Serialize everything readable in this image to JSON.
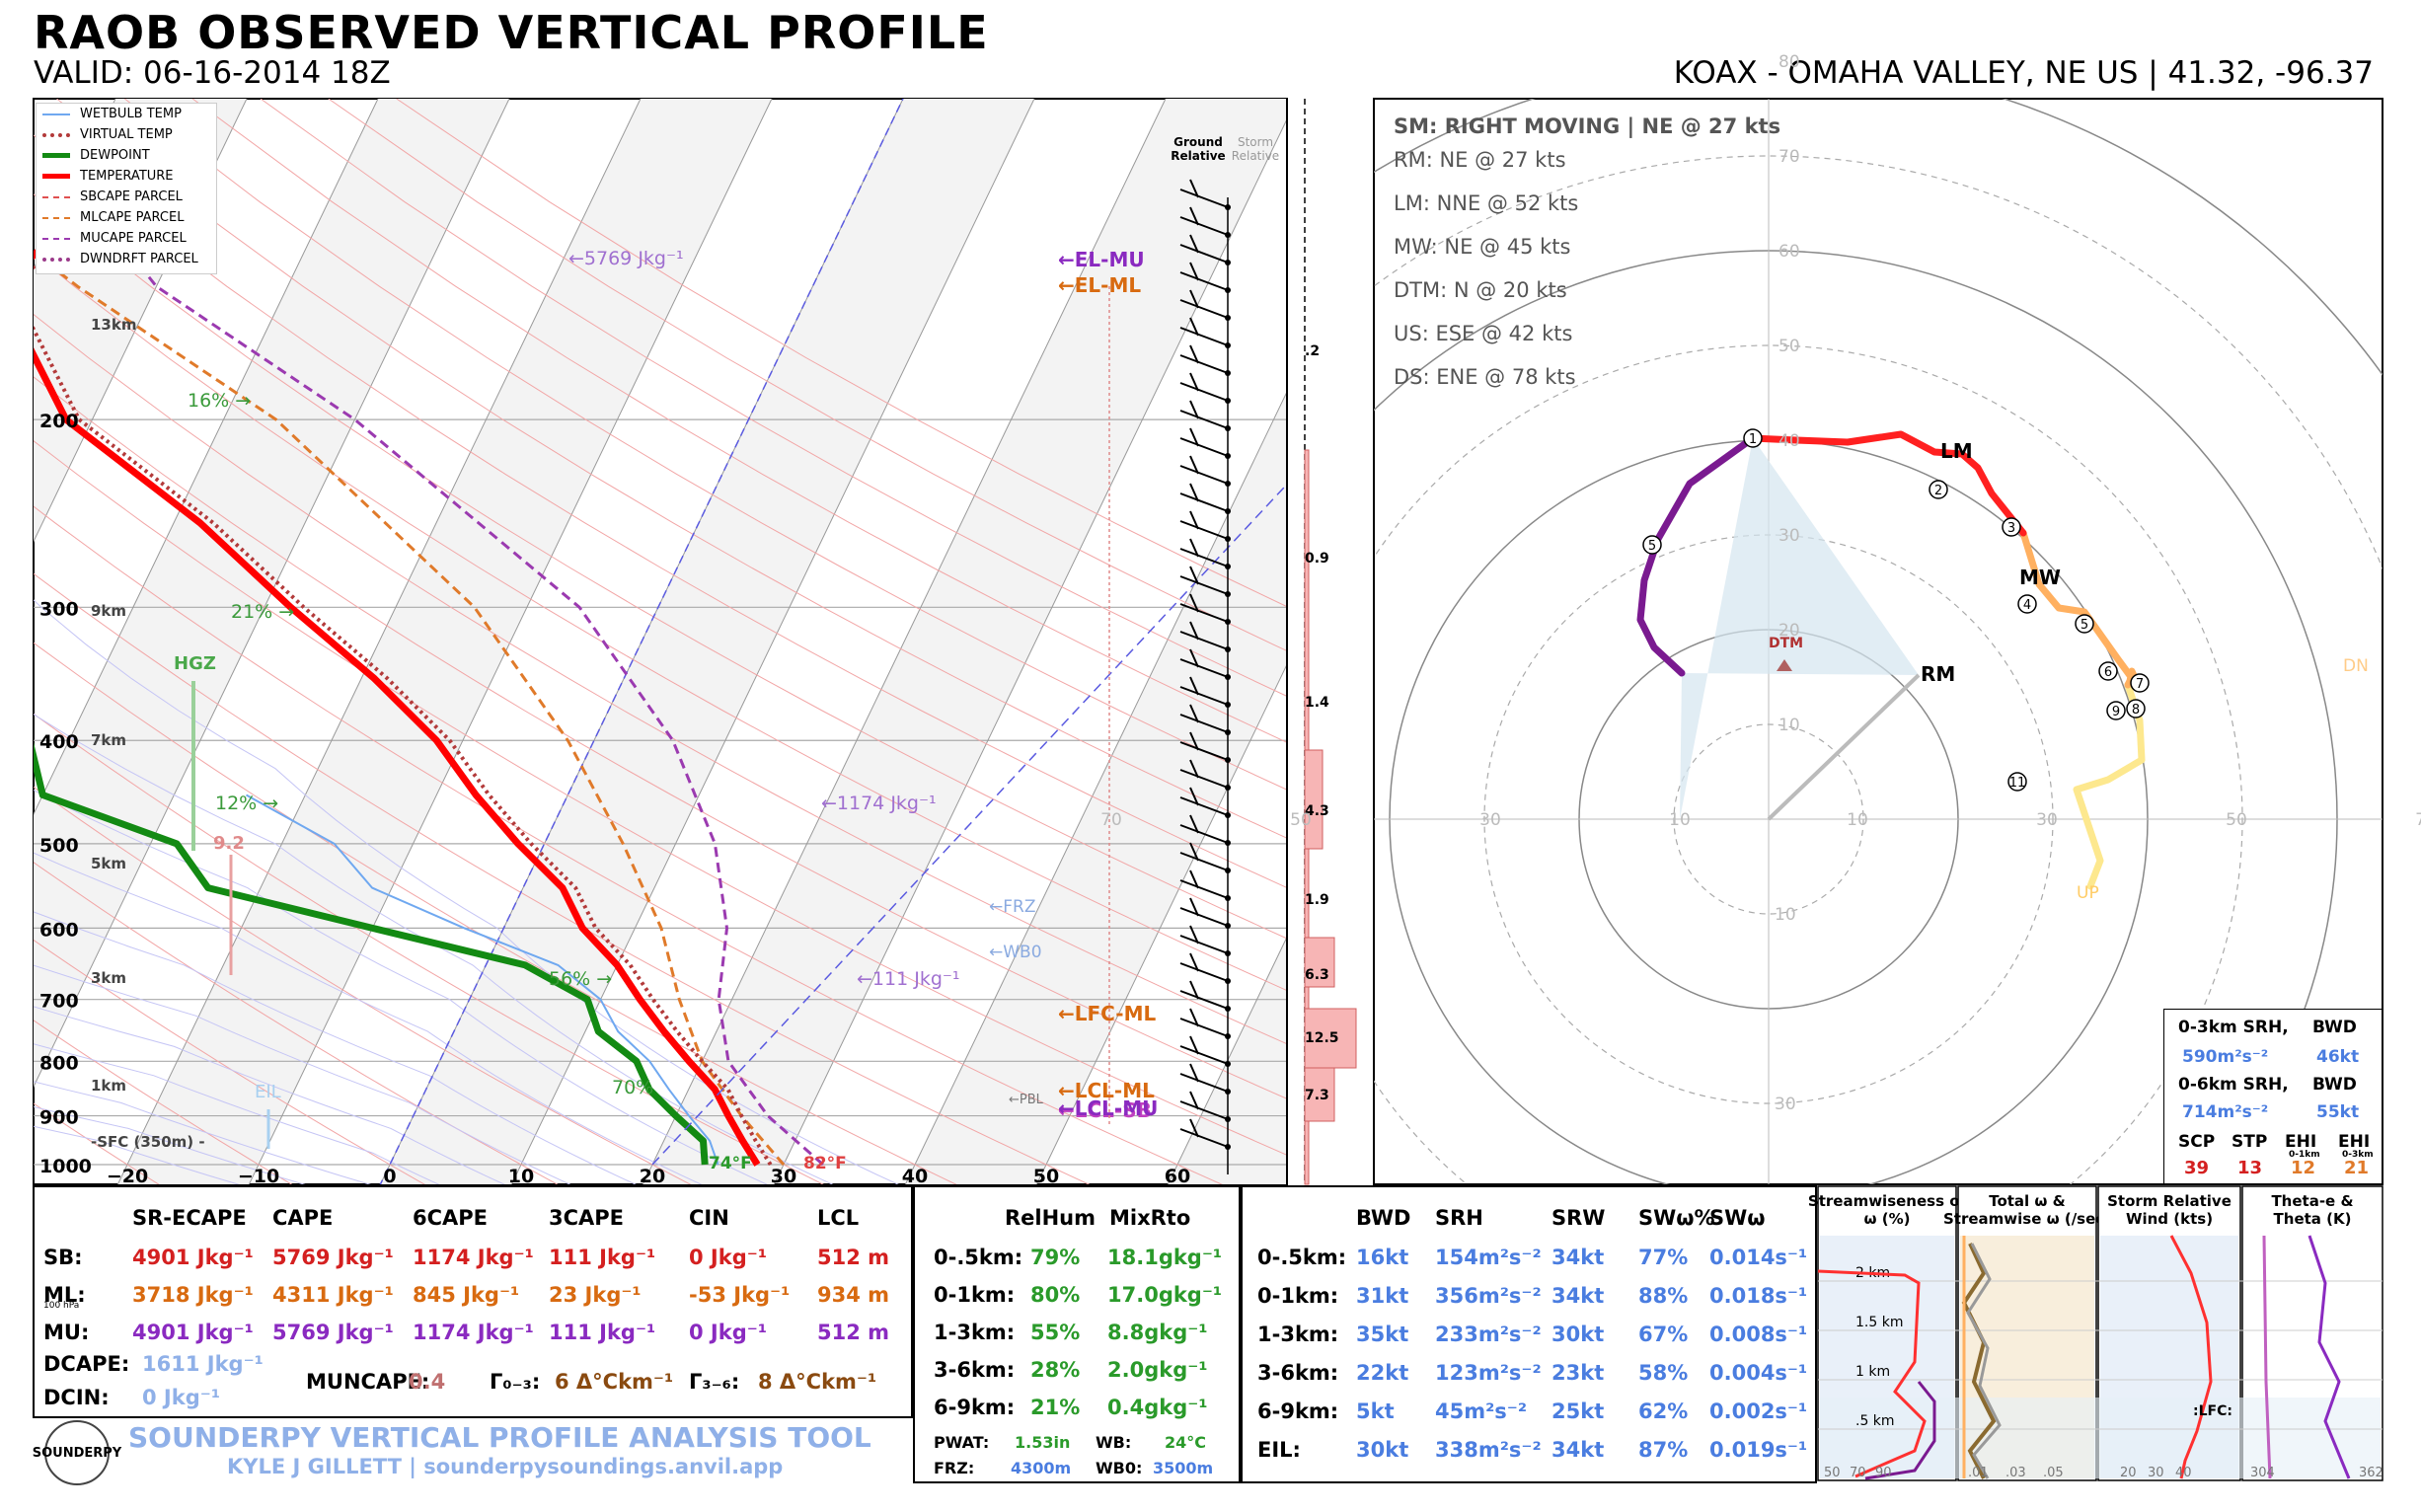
{
  "header": {
    "title": "RAOB OBSERVED VERTICAL PROFILE",
    "valid": "VALID: 06-16-2014 18Z",
    "station": "KOAX - OMAHA VALLEY, NE US | 41.32, -96.37"
  },
  "legend": [
    {
      "label": "WETBULB TEMP",
      "color": "#6fa8f0",
      "style": "thin"
    },
    {
      "label": "VIRTUAL TEMP",
      "color": "#b33a3a",
      "style": "dotted"
    },
    {
      "label": "DEWPOINT",
      "color": "#138a13",
      "style": "thick"
    },
    {
      "label": "TEMPERATURE",
      "color": "#ff0000",
      "style": "thick"
    },
    {
      "label": "SBCAPE PARCEL",
      "color": "#e05050",
      "style": "dashed"
    },
    {
      "label": "MLCAPE PARCEL",
      "color": "#e07a2a",
      "style": "dashed"
    },
    {
      "label": "MUCAPE PARCEL",
      "color": "#9b3ab0",
      "style": "dashed"
    },
    {
      "label": "DWNDRFT PARCEL",
      "color": "#9b3a8a",
      "style": "dotted"
    }
  ],
  "skewt": {
    "pressure_ticks": [
      "200",
      "300",
      "400",
      "500",
      "600",
      "700",
      "800",
      "900",
      "1000"
    ],
    "temp_ticks": [
      "−20",
      "−10",
      "0",
      "10",
      "20",
      "30",
      "40",
      "50",
      "60"
    ],
    "height_labels": [
      "13km",
      "9km",
      "7km",
      "5km",
      "3km",
      "1km"
    ],
    "sfc_label": "-SFC (350m) -",
    "rh_labels": [
      "16% →",
      "21% →",
      "12% →",
      "56% →",
      "70%"
    ],
    "hgz": "HGZ",
    "hgz_val": "9.2",
    "eil": "EIL",
    "sfc_temp": "82°F",
    "sfc_dew": "74°F",
    "cape_labels": [
      "←5769 Jkg⁻¹",
      "←1174 Jkg⁻¹",
      "←111 Jkg⁻¹"
    ],
    "frz": "←FRZ",
    "wb0": "←WB0",
    "pbl": "←PBL",
    "el_mu": "←EL-MU",
    "el_ml": "←EL-ML",
    "lfc_ml": "←LFC-ML",
    "lcl_ml": "←LCL-ML",
    "lcl_mu": "←LCL-MU",
    "lcl_sb": "←LCL-SB",
    "ground_rel": "Ground Relative",
    "storm_rel": "Storm Relative",
    "inflow_vals": [
      ".2",
      "0.9",
      "1.4",
      "4.3",
      "1.9",
      "6.3",
      "12.5",
      "7.3"
    ]
  },
  "chart_data": {
    "type": "line",
    "title": "RAOB OBSERVED VERTICAL PROFILE",
    "xlabel": "",
    "ylabel": "",
    "ylim": [
      1000,
      100
    ],
    "xlim": [
      -20,
      60
    ],
    "series": [
      {
        "name": "TEMPERATURE",
        "p": [
          1000,
          950,
          900,
          850,
          800,
          750,
          700,
          650,
          600,
          550,
          500,
          450,
          400,
          350,
          300,
          250,
          200,
          150,
          120
        ],
        "t": [
          28,
          26,
          24,
          22,
          19,
          16,
          13,
          10,
          6,
          3,
          -2,
          -7,
          -12,
          -19,
          -28,
          -38,
          -52,
          -62,
          -57
        ]
      },
      {
        "name": "DEWPOINT",
        "p": [
          1000,
          950,
          900,
          850,
          800,
          750,
          700,
          650,
          600,
          550,
          500,
          450,
          400,
          350,
          300,
          250,
          200,
          150,
          120
        ],
        "t": [
          24,
          23,
          20,
          17,
          15,
          11,
          9,
          3,
          -10,
          -24,
          -28,
          -40,
          -43,
          -52,
          -52,
          -60,
          -72,
          -82,
          -82
        ]
      }
    ]
  },
  "table_left": {
    "headers": [
      "SR-ECAPE",
      "CAPE",
      "6CAPE",
      "3CAPE",
      "CIN",
      "LCL"
    ],
    "rows": [
      {
        "label": "SB:",
        "vals": [
          "4901 Jkg⁻¹",
          "5769 Jkg⁻¹",
          "1174 Jkg⁻¹",
          "111 Jkg⁻¹",
          "0 Jkg⁻¹",
          "512 m"
        ],
        "color": "#d42020"
      },
      {
        "label": "ML:",
        "vals": [
          "3718 Jkg⁻¹",
          "4311 Jkg⁻¹",
          "845 Jkg⁻¹",
          "23 Jkg⁻¹",
          "-53 Jkg⁻¹",
          "934 m"
        ],
        "color": "#d86a10"
      },
      {
        "label": "MU:",
        "vals": [
          "4901 Jkg⁻¹",
          "5769 Jkg⁻¹",
          "1174 Jkg⁻¹",
          "111 Jkg⁻¹",
          "0 Jkg⁻¹",
          "512 m"
        ],
        "color": "#8a2ac0"
      }
    ],
    "ml_sub": "100 hPa",
    "dcape_label": "DCAPE:",
    "dcape": "1611 Jkg⁻¹",
    "dcin_label": "DCIN:",
    "dcin": "0 Jkg⁻¹",
    "muncape_label": "MUNCAPE:",
    "muncape": "0.4",
    "lr03_label": "Γ₀₋₃:",
    "lr03": "6 Δ°Ckm⁻¹",
    "lr36_label": "Γ₃₋₆:",
    "lr36": "8 Δ°Ckm⁻¹"
  },
  "table_mid": {
    "headers": [
      "RelHum",
      "MixRto"
    ],
    "rows": [
      {
        "label": "0-.5km:",
        "rh": "79%",
        "mr": "18.1gkg⁻¹"
      },
      {
        "label": "0-1km:",
        "rh": "80%",
        "mr": "17.0gkg⁻¹"
      },
      {
        "label": "1-3km:",
        "rh": "55%",
        "mr": "8.8gkg⁻¹"
      },
      {
        "label": "3-6km:",
        "rh": "28%",
        "mr": "2.0gkg⁻¹"
      },
      {
        "label": "6-9km:",
        "rh": "21%",
        "mr": "0.4gkg⁻¹"
      }
    ],
    "pwat_label": "PWAT:",
    "pwat": "1.53in",
    "wb_label": "WB:",
    "wb": "24°C",
    "frz_label": "FRZ:",
    "frz": "4300m",
    "wb0_label": "WB0:",
    "wb0": "3500m"
  },
  "table_right": {
    "headers": [
      "BWD",
      "SRH",
      "SRW",
      "SWω%",
      "SWω"
    ],
    "rows": [
      {
        "label": "0-.5km:",
        "vals": [
          "16kt",
          "154m²s⁻²",
          "34kt",
          "77%",
          "0.014s⁻¹"
        ]
      },
      {
        "label": "0-1km:",
        "vals": [
          "31kt",
          "356m²s⁻²",
          "34kt",
          "88%",
          "0.018s⁻¹"
        ]
      },
      {
        "label": "1-3km:",
        "vals": [
          "35kt",
          "233m²s⁻²",
          "30kt",
          "67%",
          "0.008s⁻¹"
        ]
      },
      {
        "label": "3-6km:",
        "vals": [
          "22kt",
          "123m²s⁻²",
          "23kt",
          "58%",
          "0.004s⁻¹"
        ]
      },
      {
        "label": "6-9km:",
        "vals": [
          "5kt",
          "45m²s⁻²",
          "25kt",
          "62%",
          "0.002s⁻¹"
        ]
      },
      {
        "label": "EIL:",
        "vals": [
          "30kt",
          "338m²s⁻²",
          "34kt",
          "87%",
          "0.019s⁻¹"
        ]
      }
    ]
  },
  "hodo": {
    "sm_title": "SM: RIGHT MOVING | NE @ 27 kts",
    "motions": [
      "RM: NE @ 27 kts",
      "LM: NNE @ 52 kts",
      "MW: NE @ 45 kts",
      "DTM: N @ 20 kts",
      "US: ESE @ 42 kts",
      "DS: ENE @ 78 kts"
    ],
    "ring_labels": [
      "10",
      "20",
      "30",
      "40",
      "50",
      "60",
      "70",
      "80"
    ],
    "lm": "LM",
    "mw": "MW",
    "rm": "RM",
    "dtm": "DTM",
    "dn": "DN",
    "up": "UP",
    "points": [
      "1",
      "2",
      "3",
      "4",
      "5",
      "6",
      "7",
      "8",
      "9",
      "11",
      "5"
    ]
  },
  "srh_box": {
    "l1": "0-3km SRH,",
    "l1b": "BWD",
    "v1": "590m²s⁻²",
    "v1b": "46kt",
    "l2": "0-6km SRH,",
    "l2b": "BWD",
    "v2": "714m²s⁻²",
    "v2b": "55kt",
    "idx_labels": [
      "SCP",
      "STP",
      "EHI",
      "EHI"
    ],
    "idx_sub": [
      "",
      "",
      "0-1km",
      "0-3km"
    ],
    "idx_vals": [
      "39",
      "13",
      "12",
      "21"
    ]
  },
  "panels": {
    "p1": "Streamwiseness of ω (%)",
    "p2": "Total ω & Streamwise ω (/sec)",
    "p3": "Storm Relative Wind (kts)",
    "p4": "Theta-e & Theta (K)",
    "heights": [
      "2 km",
      "1.5 km",
      "1 km",
      ".5 km"
    ],
    "p1_ticks": [
      "50",
      "70",
      "90"
    ],
    "p2_ticks": [
      ".01",
      ".03",
      ".05"
    ],
    "p3_ticks": [
      "20",
      "30",
      "40"
    ],
    "p4_ticks": [
      "304",
      "362"
    ]
  },
  "footer": {
    "logo": "SOUNDERPY",
    "title": "SOUNDERPY VERTICAL PROFILE ANALYSIS TOOL",
    "sub": "KYLE J GILLETT | sounderpysoundings.anvil.app"
  }
}
